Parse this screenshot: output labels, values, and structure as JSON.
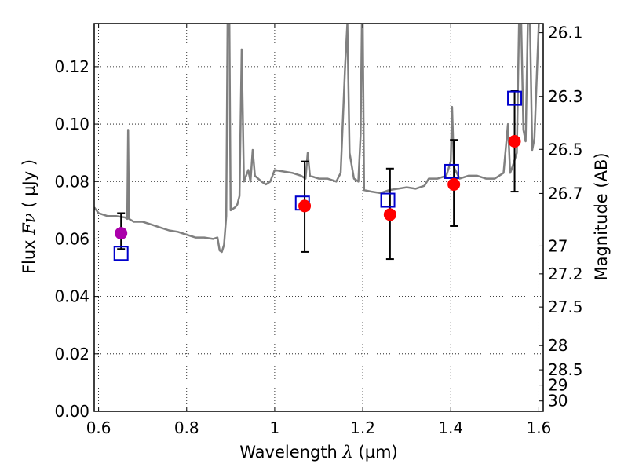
{
  "chart_data": {
    "type": "scatter",
    "title": "",
    "xlabel_prefix": "Wavelength",
    "xlabel_symbol": "λ",
    "xlabel_unit": "(μm)",
    "ylabel_prefix": "Flux",
    "ylabel_symbol": "Fν",
    "ylabel_unit": "( μJy )",
    "y2label": "Magnitude (AB)",
    "xlim": [
      0.59,
      1.61
    ],
    "ylim": [
      0.0,
      0.135
    ],
    "xticks": [
      0.6,
      0.8,
      1.0,
      1.2,
      1.4,
      1.6
    ],
    "xtick_labels": [
      "0.6",
      "0.8",
      "1",
      "1.2",
      "1.4",
      "1.6"
    ],
    "yticks": [
      0.0,
      0.02,
      0.04,
      0.06,
      0.08,
      0.1,
      0.12
    ],
    "ytick_labels": [
      "0.00",
      "0.02",
      "0.04",
      "0.06",
      "0.08",
      "0.10",
      "0.12"
    ],
    "y2ticks": [
      26.1,
      26.3,
      26.5,
      26.7,
      27,
      27.2,
      27.5,
      28,
      28.5,
      29,
      30
    ],
    "y2tick_labels": [
      "26.1",
      "26.3",
      "26.5",
      "26.7",
      "27",
      "27.2",
      "27.5",
      "28",
      "28.5",
      "29",
      "30"
    ],
    "grid": true,
    "colors": {
      "spectrum": "#808080",
      "observed_red": "#ff0000",
      "observed_purple": "#aa00aa",
      "model": "#0000cc",
      "errorbar": "#000000"
    },
    "spectrum": [
      [
        0.59,
        0.071
      ],
      [
        0.6,
        0.069
      ],
      [
        0.62,
        0.068
      ],
      [
        0.64,
        0.068
      ],
      [
        0.66,
        0.0675
      ],
      [
        0.665,
        0.067
      ],
      [
        0.667,
        0.098
      ],
      [
        0.669,
        0.067
      ],
      [
        0.68,
        0.066
      ],
      [
        0.7,
        0.066
      ],
      [
        0.72,
        0.065
      ],
      [
        0.74,
        0.064
      ],
      [
        0.76,
        0.063
      ],
      [
        0.78,
        0.0625
      ],
      [
        0.8,
        0.0615
      ],
      [
        0.82,
        0.0605
      ],
      [
        0.84,
        0.0605
      ],
      [
        0.86,
        0.06
      ],
      [
        0.87,
        0.0605
      ],
      [
        0.875,
        0.056
      ],
      [
        0.88,
        0.0555
      ],
      [
        0.885,
        0.058
      ],
      [
        0.89,
        0.068
      ],
      [
        0.893,
        0.135
      ],
      [
        0.897,
        0.135
      ],
      [
        0.9,
        0.07
      ],
      [
        0.91,
        0.071
      ],
      [
        0.915,
        0.072
      ],
      [
        0.92,
        0.075
      ],
      [
        0.925,
        0.126
      ],
      [
        0.93,
        0.08
      ],
      [
        0.94,
        0.084
      ],
      [
        0.945,
        0.08
      ],
      [
        0.95,
        0.091
      ],
      [
        0.955,
        0.082
      ],
      [
        0.97,
        0.08
      ],
      [
        0.98,
        0.079
      ],
      [
        0.99,
        0.08
      ],
      [
        1.0,
        0.084
      ],
      [
        1.02,
        0.0835
      ],
      [
        1.04,
        0.083
      ],
      [
        1.06,
        0.082
      ],
      [
        1.07,
        0.081
      ],
      [
        1.075,
        0.09
      ],
      [
        1.08,
        0.082
      ],
      [
        1.1,
        0.081
      ],
      [
        1.12,
        0.081
      ],
      [
        1.14,
        0.08
      ],
      [
        1.15,
        0.083
      ],
      [
        1.16,
        0.12
      ],
      [
        1.165,
        0.135
      ],
      [
        1.17,
        0.09
      ],
      [
        1.18,
        0.081
      ],
      [
        1.19,
        0.08
      ],
      [
        1.195,
        0.096
      ],
      [
        1.198,
        0.135
      ],
      [
        1.2,
        0.135
      ],
      [
        1.203,
        0.077
      ],
      [
        1.22,
        0.0765
      ],
      [
        1.24,
        0.076
      ],
      [
        1.26,
        0.077
      ],
      [
        1.28,
        0.0775
      ],
      [
        1.3,
        0.078
      ],
      [
        1.32,
        0.0775
      ],
      [
        1.34,
        0.0785
      ],
      [
        1.35,
        0.081
      ],
      [
        1.37,
        0.081
      ],
      [
        1.39,
        0.082
      ],
      [
        1.4,
        0.087
      ],
      [
        1.403,
        0.106
      ],
      [
        1.407,
        0.085
      ],
      [
        1.42,
        0.081
      ],
      [
        1.44,
        0.082
      ],
      [
        1.46,
        0.082
      ],
      [
        1.48,
        0.081
      ],
      [
        1.5,
        0.081
      ],
      [
        1.52,
        0.083
      ],
      [
        1.53,
        0.1
      ],
      [
        1.535,
        0.083
      ],
      [
        1.54,
        0.085
      ],
      [
        1.55,
        0.09
      ],
      [
        1.555,
        0.135
      ],
      [
        1.56,
        0.135
      ],
      [
        1.565,
        0.098
      ],
      [
        1.57,
        0.094
      ],
      [
        1.575,
        0.135
      ],
      [
        1.58,
        0.135
      ],
      [
        1.585,
        0.091
      ],
      [
        1.59,
        0.095
      ],
      [
        1.6,
        0.135
      ]
    ],
    "observed": [
      {
        "x": 0.651,
        "y": 0.062,
        "yerr_low": 0.0565,
        "yerr_high": 0.069,
        "color": "purple"
      },
      {
        "x": 1.068,
        "y": 0.0715,
        "yerr_low": 0.0555,
        "yerr_high": 0.087,
        "color": "red"
      },
      {
        "x": 1.262,
        "y": 0.0685,
        "yerr_low": 0.053,
        "yerr_high": 0.0845,
        "color": "red"
      },
      {
        "x": 1.407,
        "y": 0.079,
        "yerr_low": 0.0645,
        "yerr_high": 0.0945,
        "color": "red"
      },
      {
        "x": 1.545,
        "y": 0.094,
        "yerr_low": 0.0765,
        "yerr_high": 0.1115,
        "color": "red"
      }
    ],
    "model": [
      {
        "x": 0.651,
        "y": 0.055
      },
      {
        "x": 1.063,
        "y": 0.0725
      },
      {
        "x": 1.257,
        "y": 0.0735
      },
      {
        "x": 1.402,
        "y": 0.0835
      },
      {
        "x": 1.545,
        "y": 0.109
      }
    ]
  }
}
